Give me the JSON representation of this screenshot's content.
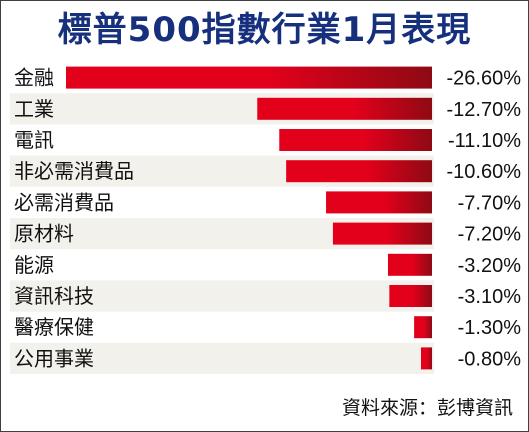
{
  "title": "標普500指數行業1月表現",
  "source": "資料來源：彭博資訊",
  "colors": {
    "title": "#16307e",
    "bar": "#e3001b",
    "bar_dark": "#8e0a14",
    "band": "#f3f1ec"
  },
  "chart_data": {
    "type": "bar",
    "orientation": "horizontal",
    "title": "標普500指數行業1月表現",
    "categories": [
      "金融",
      "工業",
      "電訊",
      "非必需消費品",
      "必需消費品",
      "原材料",
      "能源",
      "資訊科技",
      "醫療保健",
      "公用事業"
    ],
    "values": [
      -26.6,
      -12.7,
      -11.1,
      -10.6,
      -7.7,
      -7.2,
      -3.2,
      -3.1,
      -1.3,
      -0.8
    ],
    "value_labels": [
      "-26.60%",
      "-12.70%",
      "-11.10%",
      "-10.60%",
      "-7.70%",
      "-7.20%",
      "-3.20%",
      "-3.10%",
      "-1.30%",
      "-0.80%"
    ],
    "unit": "%",
    "xlim": [
      -26.6,
      0
    ],
    "grid": false,
    "legend": "none"
  }
}
